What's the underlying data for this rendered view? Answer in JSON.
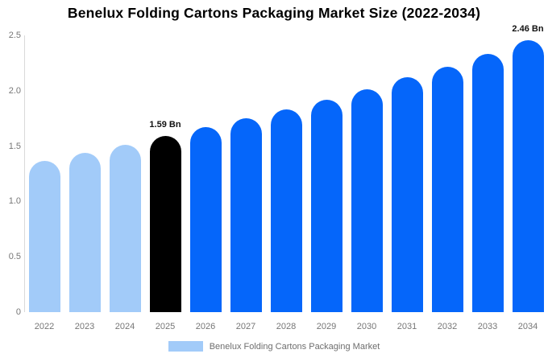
{
  "title": "Benelux Folding Cartons Packaging Market Size (2022-2034)",
  "legend": {
    "label": "Benelux Folding Cartons Packaging Market",
    "swatch_color": "#a2cbf9"
  },
  "colors": {
    "historical_bar": "#a2cbf9",
    "base_year_bar": "#000000",
    "forecast_bar": "#0566fa",
    "axis_text": "#767676",
    "axis_line": "#d9d9d9",
    "title_text": "#000000"
  },
  "chart_data": {
    "type": "bar",
    "title": "Benelux Folding Cartons Packaging Market Size (2022-2034)",
    "xlabel": "",
    "ylabel": "",
    "categories": [
      "2022",
      "2023",
      "2024",
      "2025",
      "2026",
      "2027",
      "2028",
      "2029",
      "2030",
      "2031",
      "2032",
      "2033",
      "2034"
    ],
    "values": [
      1.37,
      1.44,
      1.51,
      1.59,
      1.67,
      1.75,
      1.83,
      1.92,
      2.01,
      2.12,
      2.22,
      2.33,
      2.46
    ],
    "unit": "Bn",
    "bar_colors": [
      "#a2cbf9",
      "#a2cbf9",
      "#a2cbf9",
      "#000000",
      "#0566fa",
      "#0566fa",
      "#0566fa",
      "#0566fa",
      "#0566fa",
      "#0566fa",
      "#0566fa",
      "#0566fa",
      "#0566fa"
    ],
    "annotations": [
      {
        "category": "2025",
        "text": "1.59 Bn"
      },
      {
        "category": "2034",
        "text": "2.46 Bn"
      }
    ],
    "yticks": [
      {
        "label": "2.5",
        "value": 2.5
      },
      {
        "label": "2.0",
        "value": 2.0
      },
      {
        "label": "1.5",
        "value": 1.5
      },
      {
        "label": "1.0",
        "value": 1.0
      },
      {
        "label": "0.5",
        "value": 0.5
      },
      {
        "label": "0",
        "value": 0
      }
    ],
    "ylim": [
      0,
      2.5
    ],
    "grid": false,
    "legend_position": "bottom"
  }
}
